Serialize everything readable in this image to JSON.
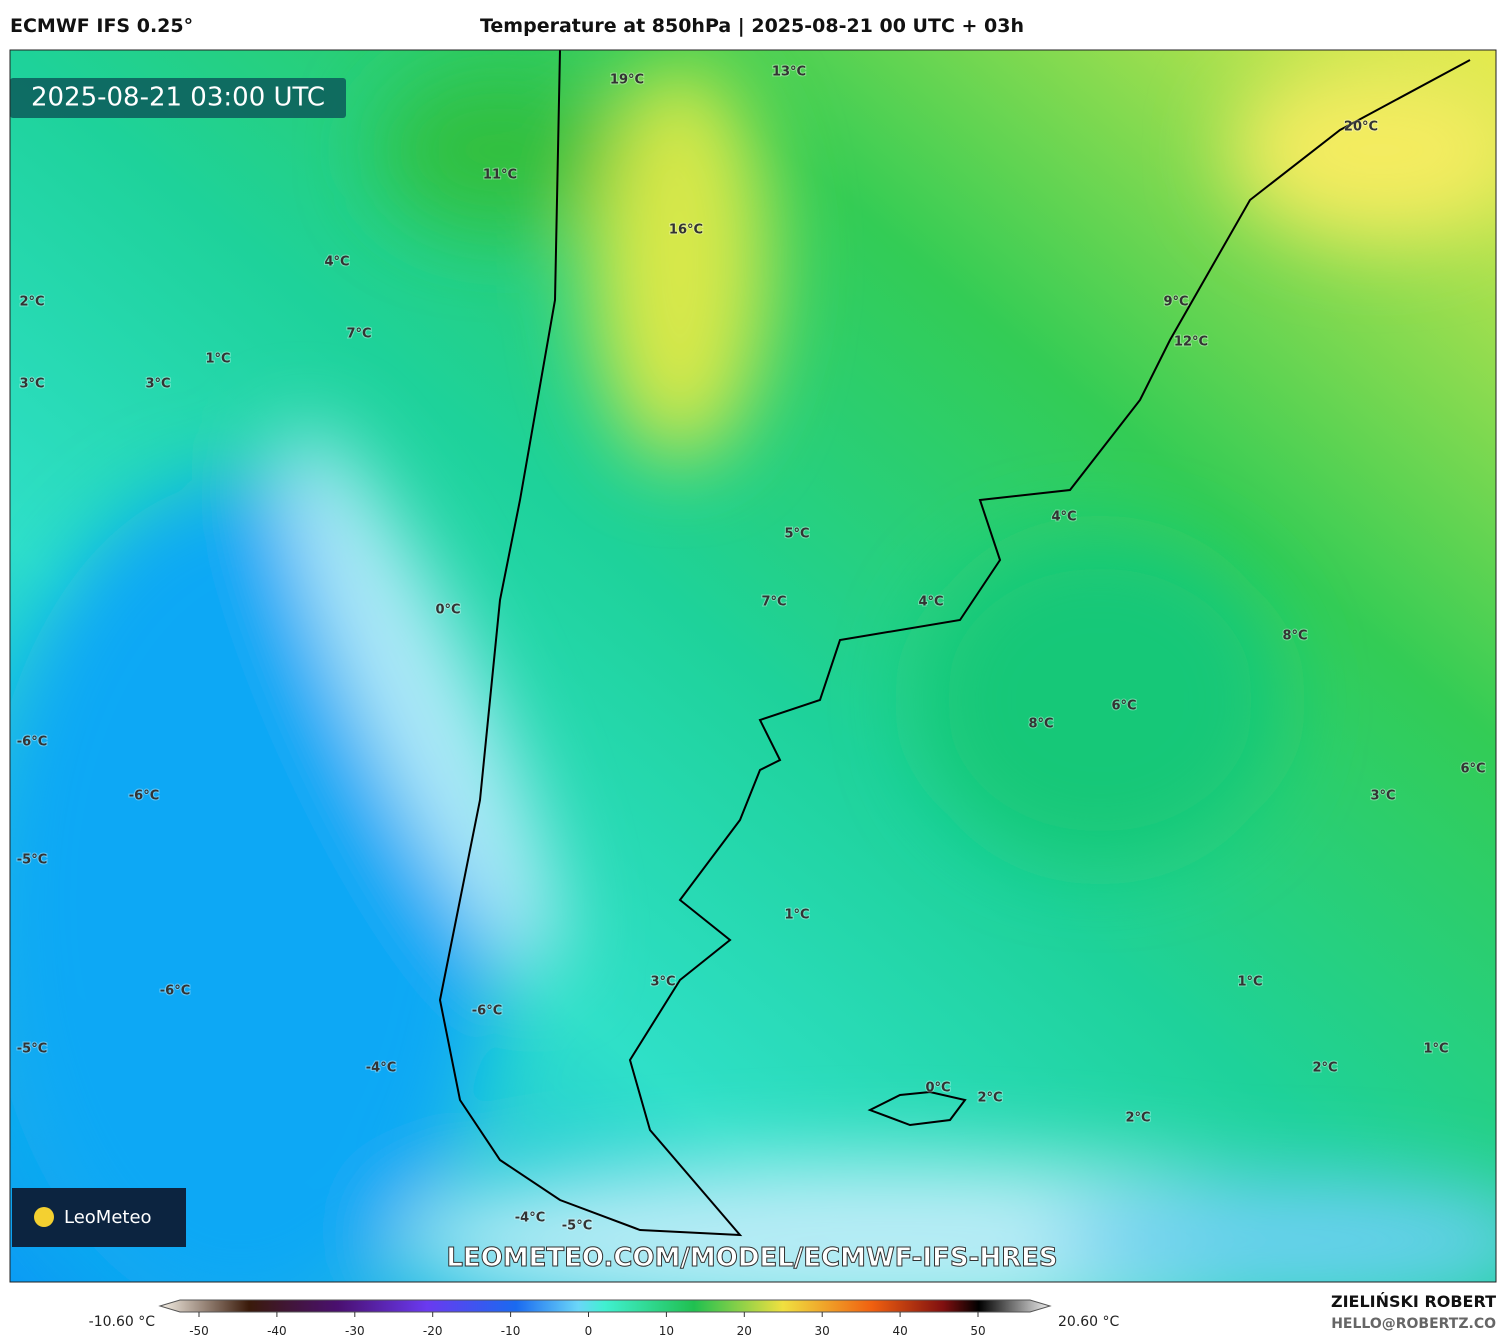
{
  "header": {
    "model": "ECMWF IFS 0.25°",
    "title": "Temperature at 850hPa | 2025-08-21 00 UTC + 03h"
  },
  "map": {
    "timestamp": "2025-08-21 03:00 UTC",
    "labels": [
      "19°C",
      "13°C",
      "20°C",
      "11°C",
      "16°C",
      "4°C",
      "2°C",
      "9°C",
      "7°C",
      "12°C",
      "1°C",
      "3°C",
      "3°C",
      "4°C",
      "5°C",
      "0°C",
      "7°C",
      "4°C",
      "8°C",
      "6°C",
      "8°C",
      "-6°C",
      "6°C",
      "-6°C",
      "3°C",
      "-5°C",
      "1°C",
      "3°C",
      "1°C",
      "-6°C",
      "-6°C",
      "-5°C",
      "1°C",
      "-4°C",
      "2°C",
      "0°C",
      "2°C",
      "2°C",
      "-4°C",
      "-5°C"
    ],
    "watermark": "LEOMETEO.COM/MODEL/ECMWF-IFS-HRES",
    "logo": "LeoMeteo"
  },
  "colorbar": {
    "min_label": "-10.60 °C",
    "max_label": "20.60 °C",
    "ticks": [
      -50,
      -40,
      -30,
      -20,
      -10,
      0,
      10,
      20,
      30,
      40,
      50
    ]
  },
  "footer": {
    "author": "ZIELIŃSKI ROBERT",
    "email": "HELLO@ROBERTZ.CO"
  }
}
